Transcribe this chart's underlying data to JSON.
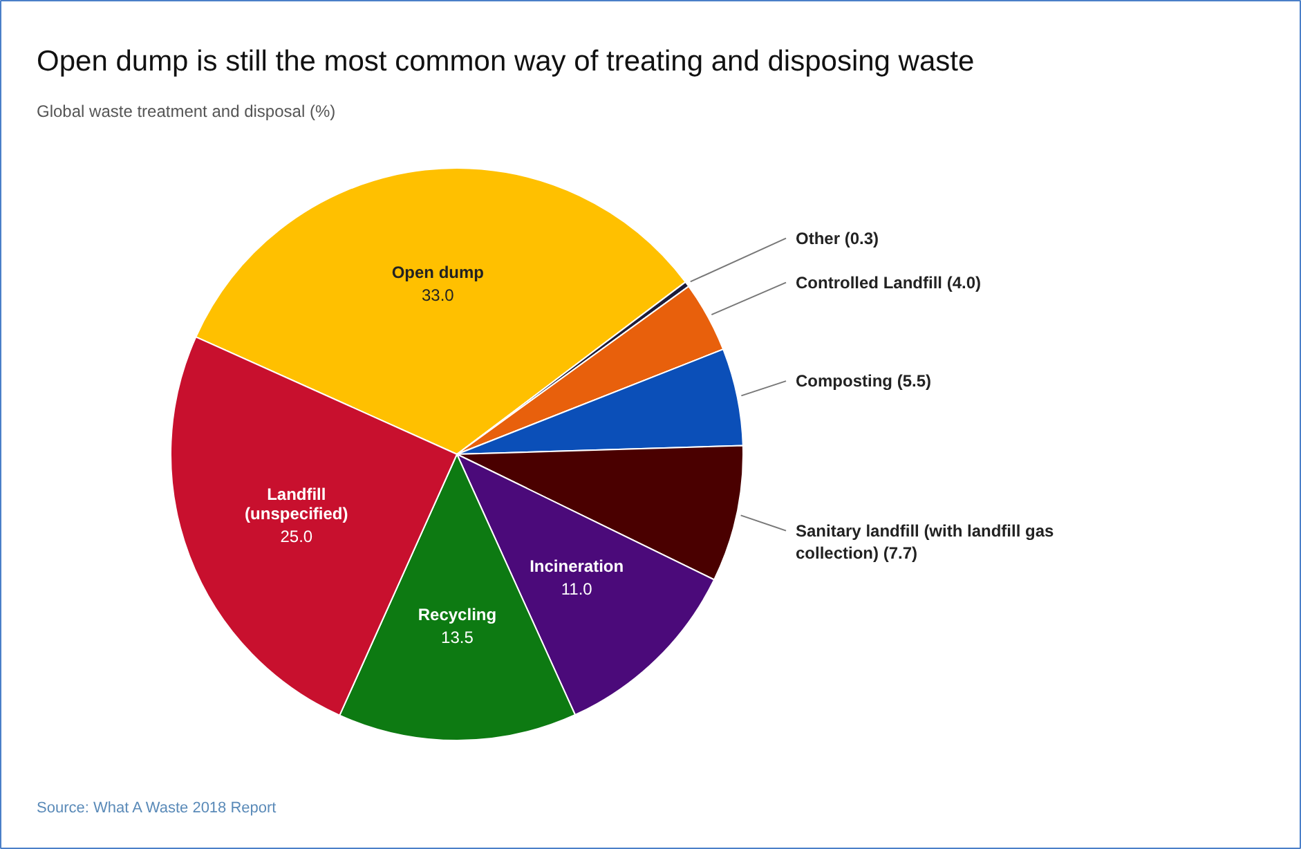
{
  "chart_data": {
    "type": "pie",
    "title": "Open dump is still the most common way of treating and disposing waste",
    "subtitle": "Global waste treatment and disposal (%)",
    "categories": [
      "Open dump",
      "Other",
      "Controlled Landfill",
      "Composting",
      "Sanitary landfill (with landfill gas collection)",
      "Incineration",
      "Recycling",
      "Landfill (unspecified)"
    ],
    "values": [
      33.0,
      0.3,
      4.0,
      5.5,
      7.7,
      11.0,
      13.5,
      25.0
    ],
    "colors": [
      "#ffc000",
      "#1c1c3a",
      "#e8600c",
      "#0b4fb8",
      "#4a0000",
      "#4b0a7a",
      "#0d7a12",
      "#c8102e"
    ],
    "value_labels": [
      "33.0",
      "(0.3)",
      "(4.0)",
      "(5.5)",
      "(7.7)",
      "11.0",
      "13.5",
      "25.0"
    ],
    "annotations": [
      "Source: What A Waste 2018 Report"
    ]
  }
}
